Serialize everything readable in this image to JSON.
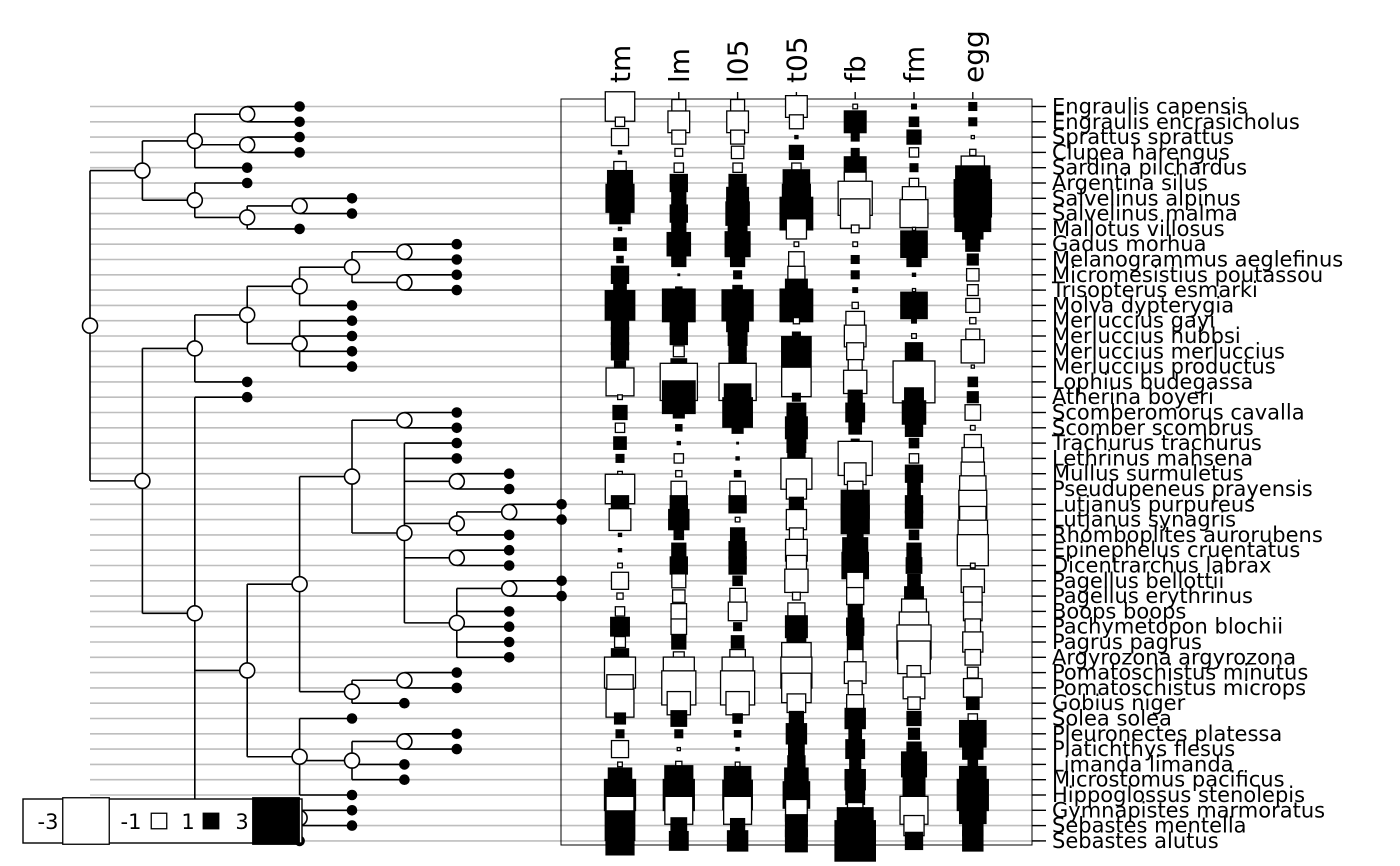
{
  "traits": [
    "tm",
    "lm",
    "l05",
    "t05",
    "fb",
    "fm",
    "egg"
  ],
  "legend": {
    "values": [
      -3,
      -1,
      1,
      3
    ],
    "labels": [
      "-3",
      "-1",
      "1",
      "3"
    ]
  },
  "colors": {
    "positive": "#000000",
    "negative": "#ffffff",
    "tree": "#000000",
    "grid": "#bebebe"
  },
  "tree": "((((Engraulis capensis,Engraulis encrasicholus),(Sprattus sprattus,Clupea harengus),Sardina pilchardus),(Argentina silus,((Salvelinus alpinus,Salvelinus malma),Mallotus villosus))),((((((Gadus morhua,Melanogrammus aeglefinus),(Micromesistius poutassou,Trisopterus esmarki)),Molva dypterygia),(Merluccius gayi,Merluccius hubbsi,Merluccius merluccius,Merluccius productus)),Lophius budegassa),(Atherina boyeri,((((Scomberomorus cavalla,Scomber scombrus),(Trachurus trachurus,Lethrinus mahsena,(Mullus surmuletus,Pseudupeneus prayensis),((Lutjanus purpureus,Lutjanus synagris),Rhomboplites aurorubens),(Epinephelus cruentatus,Dicentrarchus labrax),((Pagellus bellottii,Pagellus erythrinus),Boops boops,Pachymetopon blochii,Pagrus pagrus,Argyrozona argyrozona))),((Pomatoschistus minutus,Pomatoschistus microps),Gobius niger)),(Solea solea,((Pleuronectes platessa,Platichthys flesus),Limanda limanda,Microstomus pacificus),Hippoglossus stenolepis)),((Gymnapistes marmoratus,Sebastes mentella),Sebastes alutus)))));",
  "species": [
    {
      "name": "Engraulis capensis",
      "values": [
        -1.9,
        -0.9,
        -0.9,
        -1.4,
        -0.3,
        0.3,
        0.5
      ]
    },
    {
      "name": "Engraulis encrasicholus",
      "values": [
        -0.6,
        -1.4,
        -1.4,
        -0.9,
        1.4,
        0.6,
        0.5
      ]
    },
    {
      "name": "Sprattus sprattus",
      "values": [
        -1.1,
        -0.9,
        -0.9,
        0.2,
        0.5,
        0.9,
        -0.2
      ]
    },
    {
      "name": "Clupea harengus",
      "values": [
        0.2,
        -0.5,
        -0.8,
        0.9,
        0.5,
        -0.6,
        -0.4
      ]
    },
    {
      "name": "Sardina pilchardus",
      "values": [
        -0.8,
        -0.6,
        -0.6,
        -0.6,
        1.4,
        0.5,
        -1.5
      ]
    },
    {
      "name": "Argentina silus",
      "values": [
        1.6,
        1.1,
        1.1,
        1.7,
        -1.4,
        -0.6,
        2.2
      ]
    },
    {
      "name": "Salvelinus alpinus",
      "values": [
        1.8,
        0.9,
        1.4,
        1.8,
        -2.2,
        -1.5,
        2.4
      ]
    },
    {
      "name": "Salvelinus malma",
      "values": [
        1.3,
        1.1,
        1.5,
        2.1,
        -1.9,
        -1.8,
        2.3
      ]
    },
    {
      "name": "Mallotus villosus",
      "values": [
        0.2,
        0.9,
        1.2,
        -1.3,
        -0.5,
        -0.2,
        1.3
      ]
    },
    {
      "name": "Gadus morhua",
      "values": [
        0.8,
        1.5,
        1.6,
        -0.3,
        -0.3,
        1.7,
        0.9
      ]
    },
    {
      "name": "Melanogrammus aeglefinus",
      "values": [
        0.4,
        0.9,
        0.9,
        -1.0,
        0.5,
        0.9,
        0.7
      ]
    },
    {
      "name": "Micromesistius poutassou",
      "values": [
        1.1,
        -0.1,
        0.5,
        -1.1,
        0.5,
        0.2,
        -0.8
      ]
    },
    {
      "name": "Trisopterus esmarki",
      "values": [
        0.8,
        0.4,
        0.6,
        1.4,
        0.3,
        -0.2,
        -0.7
      ]
    },
    {
      "name": "Molva dypterygia",
      "values": [
        1.9,
        2.1,
        2.0,
        2.1,
        -0.4,
        1.7,
        -0.9
      ]
    },
    {
      "name": "Merluccius gayi",
      "values": [
        1.1,
        1.1,
        1.4,
        -0.4,
        -1.2,
        0.3,
        -0.4
      ]
    },
    {
      "name": "Merluccius hubbsi",
      "values": [
        1.1,
        1.1,
        1.2,
        0.5,
        -1.4,
        -0.3,
        -0.9
      ]
    },
    {
      "name": "Merluccius merluccius",
      "values": [
        1.1,
        -0.7,
        1.1,
        1.9,
        -1.1,
        1.1,
        -1.5
      ]
    },
    {
      "name": "Merluccius productus",
      "values": [
        0.7,
        1.0,
        1.1,
        1.3,
        -0.9,
        -0.3,
        -0.2
      ]
    },
    {
      "name": "Lophius budegassa",
      "values": [
        -1.8,
        -2.4,
        -2.4,
        -1.9,
        -1.5,
        -2.7,
        0.6
      ]
    },
    {
      "name": "Atherina boyeri",
      "values": [
        -0.3,
        2.1,
        1.7,
        0.5,
        0.9,
        1.2,
        0.7
      ]
    },
    {
      "name": "Scomberomorus cavalla",
      "values": [
        0.9,
        0.7,
        1.9,
        1.2,
        1.2,
        1.5,
        -1.0
      ]
    },
    {
      "name": "Scomber scombrus",
      "values": [
        -0.6,
        0.4,
        0.7,
        1.4,
        0.8,
        1.1,
        -0.3
      ]
    },
    {
      "name": "Trachurus trachurus",
      "values": [
        0.8,
        0.2,
        0.1,
        1.2,
        0.5,
        0.6,
        -1.1
      ]
    },
    {
      "name": "Lethrinus mahsena",
      "values": [
        0.5,
        -0.6,
        0.2,
        1.1,
        -2.2,
        -0.6,
        -1.4
      ]
    },
    {
      "name": "Mullus surmuletus",
      "values": [
        -0.3,
        -0.4,
        0.4,
        -2.0,
        -1.4,
        1.1,
        -1.5
      ]
    },
    {
      "name": "Pseudupeneus prayensis",
      "values": [
        -1.9,
        -1.0,
        -1.0,
        -1.3,
        -1.0,
        0.8,
        -1.7
      ]
    },
    {
      "name": "Lutjanus purpureus",
      "values": [
        1.1,
        1.1,
        1.1,
        0.9,
        1.8,
        1.1,
        -1.8
      ]
    },
    {
      "name": "Lutjanus synagris",
      "values": [
        -1.4,
        1.3,
        -0.3,
        -1.3,
        1.8,
        1.1,
        -1.7
      ]
    },
    {
      "name": "Rhomboplites aurorubens",
      "values": [
        0.2,
        0.6,
        0.9,
        -0.9,
        1.0,
        0.6,
        -1.9
      ]
    },
    {
      "name": "Epinephelus cruentatus",
      "values": [
        0.2,
        0.9,
        1.1,
        -1.4,
        1.6,
        0.9,
        -2.0
      ]
    },
    {
      "name": "Dicentrarchus labrax",
      "values": [
        -0.3,
        1.1,
        1.1,
        -1.3,
        1.7,
        1.0,
        -0.3
      ]
    },
    {
      "name": "Pagellus bellottii",
      "values": [
        -1.1,
        -0.9,
        0.6,
        -1.5,
        -1.1,
        0.8,
        -1.5
      ]
    },
    {
      "name": "Pagellus erythrinus",
      "values": [
        -0.4,
        -0.8,
        -1.0,
        -0.5,
        -1.1,
        1.2,
        -1.2
      ]
    },
    {
      "name": "Boops boops",
      "values": [
        -0.6,
        -1.0,
        -1.2,
        -1.1,
        0.9,
        -1.6,
        -1.2
      ]
    },
    {
      "name": "Pachymetopon blochii",
      "values": [
        1.2,
        -1.0,
        0.5,
        1.4,
        1.1,
        -1.9,
        -1.0
      ]
    },
    {
      "name": "Pagrus pagrus",
      "values": [
        -0.7,
        0.9,
        0.8,
        1.2,
        1.0,
        -2.2,
        -1.3
      ]
    },
    {
      "name": "Argyrozona argyrozona",
      "values": [
        1.1,
        -0.7,
        -1.0,
        -1.9,
        -1.0,
        -2.1,
        -1.0
      ]
    },
    {
      "name": "Pomatoschistus minutus",
      "values": [
        -2.0,
        -2.0,
        -2.0,
        -2.0,
        -1.4,
        -0.9,
        -0.7
      ]
    },
    {
      "name": "Pomatoschistus microps",
      "values": [
        -1.7,
        -2.2,
        -2.2,
        -1.9,
        -0.9,
        -1.4,
        -1.2
      ]
    },
    {
      "name": "Gobius niger",
      "values": [
        -1.8,
        -1.5,
        -1.5,
        -1.2,
        -1.1,
        -0.8,
        0.8
      ]
    },
    {
      "name": "Solea solea",
      "values": [
        0.7,
        1.0,
        0.6,
        0.9,
        1.3,
        0.9,
        -0.6
      ]
    },
    {
      "name": "Pleuronectes platessa",
      "values": [
        0.5,
        0.5,
        0.4,
        1.3,
        0.8,
        0.7,
        1.7
      ]
    },
    {
      "name": "Platichthys flesus",
      "values": [
        -1.1,
        -0.2,
        0.2,
        1.0,
        1.2,
        0.9,
        1.3
      ]
    },
    {
      "name": "Limanda limanda",
      "values": [
        -0.3,
        -0.4,
        -0.3,
        1.1,
        0.7,
        1.6,
        0.6
      ]
    },
    {
      "name": "Microstomus pacificus",
      "values": [
        1.5,
        1.8,
        1.7,
        1.5,
        1.3,
        1.4,
        1.7
      ]
    },
    {
      "name": "Hippoglossus stenolepis",
      "values": [
        2.0,
        2.0,
        1.9,
        1.7,
        1.2,
        1.4,
        2.0
      ]
    },
    {
      "name": "Gymnapistes marmoratus",
      "values": [
        -1.8,
        -1.8,
        -1.8,
        -1.4,
        -1.0,
        -1.8,
        1.7
      ]
    },
    {
      "name": "Sebastes mentella",
      "values": [
        1.9,
        1.0,
        0.9,
        1.4,
        2.3,
        -1.3,
        1.3
      ]
    },
    {
      "name": "Sebastes alutus",
      "values": [
        1.8,
        1.2,
        1.3,
        1.4,
        2.6,
        1.1,
        1.3
      ]
    }
  ]
}
